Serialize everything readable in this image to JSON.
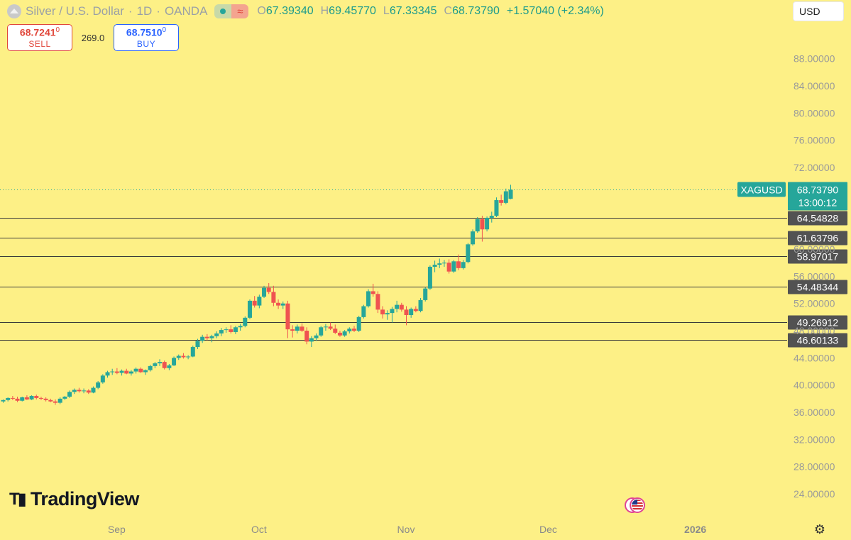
{
  "header": {
    "symbol": "Silver / U.S. Dollar",
    "sep1": "·",
    "interval": "1D",
    "sep2": "·",
    "exchange": "OANDA",
    "ohlc": [
      {
        "k": "O",
        "v": "67.39340"
      },
      {
        "k": "H",
        "v": "69.45770"
      },
      {
        "k": "L",
        "v": "67.33345"
      },
      {
        "k": "C",
        "v": "68.73790"
      }
    ],
    "change": "+1.57040 (+2.34%)"
  },
  "trade": {
    "sell_price": "68.7241",
    "sell_sup": "0",
    "sell_label": "SELL",
    "spread": "269.0",
    "buy_price": "68.7510",
    "buy_sup": "0",
    "buy_label": "BUY"
  },
  "currency": "USD",
  "logo_text": "TradingView",
  "colors": {
    "background": "#fdf086",
    "up": "#26a69a",
    "down": "#ef5350",
    "line": "#3b3b3b",
    "label_bg": "#525252",
    "last_bg": "#26a69a"
  },
  "chart_data": {
    "type": "candlestick",
    "symbol_tag": "XAGUSD",
    "last_price": "68.73790",
    "countdown": "13:00:12",
    "ylim": [
      21.5,
      93.5
    ],
    "y_ticks": [
      "24.00000",
      "28.00000",
      "32.00000",
      "36.00000",
      "40.00000",
      "44.00000",
      "48.00000",
      "52.00000",
      "56.00000",
      "60.00000",
      "72.00000",
      "76.00000",
      "80.00000",
      "84.00000",
      "88.00000"
    ],
    "x_ticks": [
      {
        "label": "Sep",
        "day": 24
      },
      {
        "label": "Oct",
        "day": 54
      },
      {
        "label": "Nov",
        "day": 85
      },
      {
        "label": "Dec",
        "day": 115
      },
      {
        "label": "2026",
        "day": 146
      }
    ],
    "x_range": [
      0,
      170
    ],
    "levels": [
      {
        "value": 64.54828,
        "label": "64.54828"
      },
      {
        "value": 61.63796,
        "label": "61.63796"
      },
      {
        "value": 58.97017,
        "label": "58.97017"
      },
      {
        "value": 54.48344,
        "label": "54.48344"
      },
      {
        "value": 49.26912,
        "label": "49.26912"
      },
      {
        "value": 46.60133,
        "label": "46.60133"
      }
    ],
    "candles": [
      {
        "d": 0,
        "o": 37.6,
        "h": 37.9,
        "l": 37.4,
        "c": 37.8
      },
      {
        "d": 1,
        "o": 37.8,
        "h": 38.2,
        "l": 37.6,
        "c": 38.1
      },
      {
        "d": 2,
        "o": 38.1,
        "h": 38.4,
        "l": 37.8,
        "c": 38.0
      },
      {
        "d": 3,
        "o": 38.0,
        "h": 38.3,
        "l": 37.5,
        "c": 37.7
      },
      {
        "d": 4,
        "o": 37.7,
        "h": 38.3,
        "l": 37.6,
        "c": 38.2
      },
      {
        "d": 5,
        "o": 38.2,
        "h": 38.5,
        "l": 37.8,
        "c": 37.9
      },
      {
        "d": 6,
        "o": 37.9,
        "h": 38.5,
        "l": 37.8,
        "c": 38.4
      },
      {
        "d": 7,
        "o": 38.4,
        "h": 38.6,
        "l": 37.9,
        "c": 38.1
      },
      {
        "d": 8,
        "o": 38.1,
        "h": 38.3,
        "l": 37.8,
        "c": 38.0
      },
      {
        "d": 9,
        "o": 38.0,
        "h": 38.2,
        "l": 37.6,
        "c": 37.8
      },
      {
        "d": 10,
        "o": 37.8,
        "h": 38.0,
        "l": 37.5,
        "c": 37.6
      },
      {
        "d": 11,
        "o": 37.6,
        "h": 37.9,
        "l": 37.1,
        "c": 37.4
      },
      {
        "d": 12,
        "o": 37.4,
        "h": 38.2,
        "l": 37.2,
        "c": 38.0
      },
      {
        "d": 13,
        "o": 38.0,
        "h": 38.4,
        "l": 37.8,
        "c": 38.3
      },
      {
        "d": 14,
        "o": 38.3,
        "h": 39.2,
        "l": 38.1,
        "c": 39.0
      },
      {
        "d": 15,
        "o": 39.0,
        "h": 39.5,
        "l": 38.7,
        "c": 39.3
      },
      {
        "d": 16,
        "o": 39.3,
        "h": 39.6,
        "l": 38.9,
        "c": 39.1
      },
      {
        "d": 17,
        "o": 39.1,
        "h": 39.5,
        "l": 38.8,
        "c": 39.2
      },
      {
        "d": 18,
        "o": 39.2,
        "h": 39.4,
        "l": 38.7,
        "c": 38.9
      },
      {
        "d": 19,
        "o": 38.9,
        "h": 39.8,
        "l": 38.8,
        "c": 39.6
      },
      {
        "d": 20,
        "o": 39.6,
        "h": 40.6,
        "l": 39.4,
        "c": 40.4
      },
      {
        "d": 21,
        "o": 40.4,
        "h": 41.6,
        "l": 40.2,
        "c": 41.4
      },
      {
        "d": 22,
        "o": 41.4,
        "h": 42.1,
        "l": 41.1,
        "c": 41.9
      },
      {
        "d": 23,
        "o": 41.9,
        "h": 42.4,
        "l": 41.5,
        "c": 42.0
      },
      {
        "d": 24,
        "o": 42.0,
        "h": 42.5,
        "l": 41.6,
        "c": 41.8
      },
      {
        "d": 25,
        "o": 41.8,
        "h": 42.3,
        "l": 41.4,
        "c": 42.1
      },
      {
        "d": 26,
        "o": 42.1,
        "h": 42.4,
        "l": 41.6,
        "c": 41.7
      },
      {
        "d": 27,
        "o": 41.7,
        "h": 42.2,
        "l": 41.4,
        "c": 42.0
      },
      {
        "d": 28,
        "o": 42.0,
        "h": 42.6,
        "l": 41.7,
        "c": 42.4
      },
      {
        "d": 29,
        "o": 42.4,
        "h": 42.6,
        "l": 41.8,
        "c": 41.9
      },
      {
        "d": 30,
        "o": 41.9,
        "h": 42.3,
        "l": 41.5,
        "c": 42.2
      },
      {
        "d": 31,
        "o": 42.2,
        "h": 43.0,
        "l": 42.0,
        "c": 42.8
      },
      {
        "d": 32,
        "o": 42.8,
        "h": 43.4,
        "l": 42.5,
        "c": 43.2
      },
      {
        "d": 33,
        "o": 43.2,
        "h": 43.8,
        "l": 42.8,
        "c": 43.4
      },
      {
        "d": 34,
        "o": 43.4,
        "h": 43.6,
        "l": 42.3,
        "c": 42.5
      },
      {
        "d": 35,
        "o": 42.5,
        "h": 43.1,
        "l": 42.2,
        "c": 42.9
      },
      {
        "d": 36,
        "o": 42.9,
        "h": 44.2,
        "l": 42.8,
        "c": 44.0
      },
      {
        "d": 37,
        "o": 44.0,
        "h": 44.5,
        "l": 43.7,
        "c": 44.3
      },
      {
        "d": 38,
        "o": 44.3,
        "h": 44.7,
        "l": 43.9,
        "c": 44.1
      },
      {
        "d": 39,
        "o": 44.1,
        "h": 44.4,
        "l": 43.8,
        "c": 44.2
      },
      {
        "d": 40,
        "o": 44.2,
        "h": 45.8,
        "l": 44.1,
        "c": 45.6
      },
      {
        "d": 41,
        "o": 45.6,
        "h": 46.8,
        "l": 45.3,
        "c": 46.5
      },
      {
        "d": 42,
        "o": 46.5,
        "h": 47.4,
        "l": 46.2,
        "c": 47.1
      },
      {
        "d": 43,
        "o": 47.1,
        "h": 47.5,
        "l": 46.6,
        "c": 46.9
      },
      {
        "d": 44,
        "o": 46.9,
        "h": 47.4,
        "l": 46.3,
        "c": 47.2
      },
      {
        "d": 45,
        "o": 47.2,
        "h": 47.9,
        "l": 46.9,
        "c": 47.6
      },
      {
        "d": 46,
        "o": 47.6,
        "h": 48.4,
        "l": 47.2,
        "c": 48.1
      },
      {
        "d": 47,
        "o": 48.1,
        "h": 48.5,
        "l": 47.7,
        "c": 48.2
      },
      {
        "d": 48,
        "o": 48.2,
        "h": 48.8,
        "l": 47.6,
        "c": 47.8
      },
      {
        "d": 49,
        "o": 47.8,
        "h": 48.7,
        "l": 47.5,
        "c": 48.5
      },
      {
        "d": 50,
        "o": 48.5,
        "h": 49.0,
        "l": 48.0,
        "c": 48.7
      },
      {
        "d": 51,
        "o": 48.7,
        "h": 50.1,
        "l": 48.5,
        "c": 49.9
      },
      {
        "d": 52,
        "o": 49.9,
        "h": 52.6,
        "l": 49.7,
        "c": 52.4
      },
      {
        "d": 53,
        "o": 52.4,
        "h": 53.1,
        "l": 51.4,
        "c": 51.7
      },
      {
        "d": 54,
        "o": 51.7,
        "h": 53.3,
        "l": 51.3,
        "c": 53.0
      },
      {
        "d": 55,
        "o": 53.0,
        "h": 54.6,
        "l": 52.8,
        "c": 54.3
      },
      {
        "d": 56,
        "o": 54.3,
        "h": 55.0,
        "l": 53.4,
        "c": 53.7
      },
      {
        "d": 57,
        "o": 53.7,
        "h": 54.6,
        "l": 51.6,
        "c": 52.1
      },
      {
        "d": 58,
        "o": 52.1,
        "h": 52.6,
        "l": 51.2,
        "c": 51.7
      },
      {
        "d": 59,
        "o": 51.7,
        "h": 52.3,
        "l": 51.2,
        "c": 52.0
      },
      {
        "d": 60,
        "o": 52.0,
        "h": 52.4,
        "l": 46.9,
        "c": 48.2
      },
      {
        "d": 61,
        "o": 48.2,
        "h": 48.8,
        "l": 47.0,
        "c": 48.0
      },
      {
        "d": 62,
        "o": 48.0,
        "h": 48.9,
        "l": 47.6,
        "c": 48.6
      },
      {
        "d": 63,
        "o": 48.6,
        "h": 49.1,
        "l": 47.8,
        "c": 48.0
      },
      {
        "d": 64,
        "o": 48.0,
        "h": 48.5,
        "l": 46.0,
        "c": 46.4
      },
      {
        "d": 65,
        "o": 46.4,
        "h": 47.2,
        "l": 45.6,
        "c": 46.9
      },
      {
        "d": 66,
        "o": 46.9,
        "h": 47.6,
        "l": 46.5,
        "c": 47.3
      },
      {
        "d": 67,
        "o": 47.3,
        "h": 48.7,
        "l": 47.1,
        "c": 48.5
      },
      {
        "d": 68,
        "o": 48.5,
        "h": 49.0,
        "l": 48.0,
        "c": 48.6
      },
      {
        "d": 69,
        "o": 48.6,
        "h": 49.2,
        "l": 48.1,
        "c": 48.3
      },
      {
        "d": 70,
        "o": 48.3,
        "h": 48.9,
        "l": 47.5,
        "c": 47.7
      },
      {
        "d": 71,
        "o": 47.7,
        "h": 48.0,
        "l": 47.1,
        "c": 47.3
      },
      {
        "d": 72,
        "o": 47.3,
        "h": 48.1,
        "l": 47.1,
        "c": 47.9
      },
      {
        "d": 73,
        "o": 47.9,
        "h": 48.5,
        "l": 47.6,
        "c": 48.3
      },
      {
        "d": 74,
        "o": 48.3,
        "h": 48.7,
        "l": 47.8,
        "c": 48.0
      },
      {
        "d": 75,
        "o": 48.0,
        "h": 50.2,
        "l": 47.8,
        "c": 50.0
      },
      {
        "d": 76,
        "o": 50.0,
        "h": 51.8,
        "l": 49.8,
        "c": 51.6
      },
      {
        "d": 77,
        "o": 51.6,
        "h": 54.1,
        "l": 51.4,
        "c": 53.8
      },
      {
        "d": 78,
        "o": 53.8,
        "h": 54.9,
        "l": 53.0,
        "c": 53.4
      },
      {
        "d": 79,
        "o": 53.4,
        "h": 53.8,
        "l": 50.6,
        "c": 51.1
      },
      {
        "d": 80,
        "o": 51.1,
        "h": 51.6,
        "l": 49.8,
        "c": 50.4
      },
      {
        "d": 81,
        "o": 50.4,
        "h": 51.0,
        "l": 49.6,
        "c": 50.6
      },
      {
        "d": 82,
        "o": 50.6,
        "h": 51.5,
        "l": 49.2,
        "c": 51.2
      },
      {
        "d": 83,
        "o": 51.2,
        "h": 52.4,
        "l": 50.7,
        "c": 51.8
      },
      {
        "d": 84,
        "o": 51.8,
        "h": 52.1,
        "l": 50.8,
        "c": 51.1
      },
      {
        "d": 85,
        "o": 51.1,
        "h": 51.6,
        "l": 48.8,
        "c": 50.3
      },
      {
        "d": 86,
        "o": 50.3,
        "h": 51.4,
        "l": 49.9,
        "c": 51.2
      },
      {
        "d": 87,
        "o": 51.2,
        "h": 51.6,
        "l": 50.7,
        "c": 50.9
      },
      {
        "d": 88,
        "o": 50.9,
        "h": 52.8,
        "l": 50.7,
        "c": 52.5
      },
      {
        "d": 89,
        "o": 52.5,
        "h": 54.4,
        "l": 52.3,
        "c": 54.2
      },
      {
        "d": 90,
        "o": 54.2,
        "h": 57.6,
        "l": 54.0,
        "c": 57.4
      },
      {
        "d": 91,
        "o": 57.4,
        "h": 58.3,
        "l": 56.6,
        "c": 57.7
      },
      {
        "d": 92,
        "o": 57.7,
        "h": 58.6,
        "l": 57.2,
        "c": 57.9
      },
      {
        "d": 93,
        "o": 57.9,
        "h": 58.4,
        "l": 57.4,
        "c": 58.0
      },
      {
        "d": 94,
        "o": 58.0,
        "h": 58.5,
        "l": 56.4,
        "c": 56.7
      },
      {
        "d": 95,
        "o": 56.7,
        "h": 58.4,
        "l": 56.5,
        "c": 58.2
      },
      {
        "d": 96,
        "o": 58.2,
        "h": 59.2,
        "l": 56.9,
        "c": 57.2
      },
      {
        "d": 97,
        "o": 57.2,
        "h": 58.4,
        "l": 57.0,
        "c": 58.1
      },
      {
        "d": 98,
        "o": 58.1,
        "h": 60.9,
        "l": 57.9,
        "c": 60.7
      },
      {
        "d": 99,
        "o": 60.7,
        "h": 62.9,
        "l": 60.5,
        "c": 62.6
      },
      {
        "d": 100,
        "o": 62.6,
        "h": 64.7,
        "l": 62.4,
        "c": 64.4
      },
      {
        "d": 101,
        "o": 64.4,
        "h": 64.9,
        "l": 61.1,
        "c": 62.9
      },
      {
        "d": 102,
        "o": 62.9,
        "h": 64.8,
        "l": 62.6,
        "c": 64.6
      },
      {
        "d": 103,
        "o": 64.6,
        "h": 65.5,
        "l": 63.9,
        "c": 64.9
      },
      {
        "d": 104,
        "o": 64.9,
        "h": 67.6,
        "l": 64.7,
        "c": 67.2
      },
      {
        "d": 105,
        "o": 67.2,
        "h": 68.0,
        "l": 66.4,
        "c": 66.8
      },
      {
        "d": 106,
        "o": 66.8,
        "h": 68.9,
        "l": 66.6,
        "c": 68.5
      },
      {
        "d": 107,
        "o": 67.39,
        "h": 69.46,
        "l": 67.33,
        "c": 68.74
      }
    ]
  }
}
